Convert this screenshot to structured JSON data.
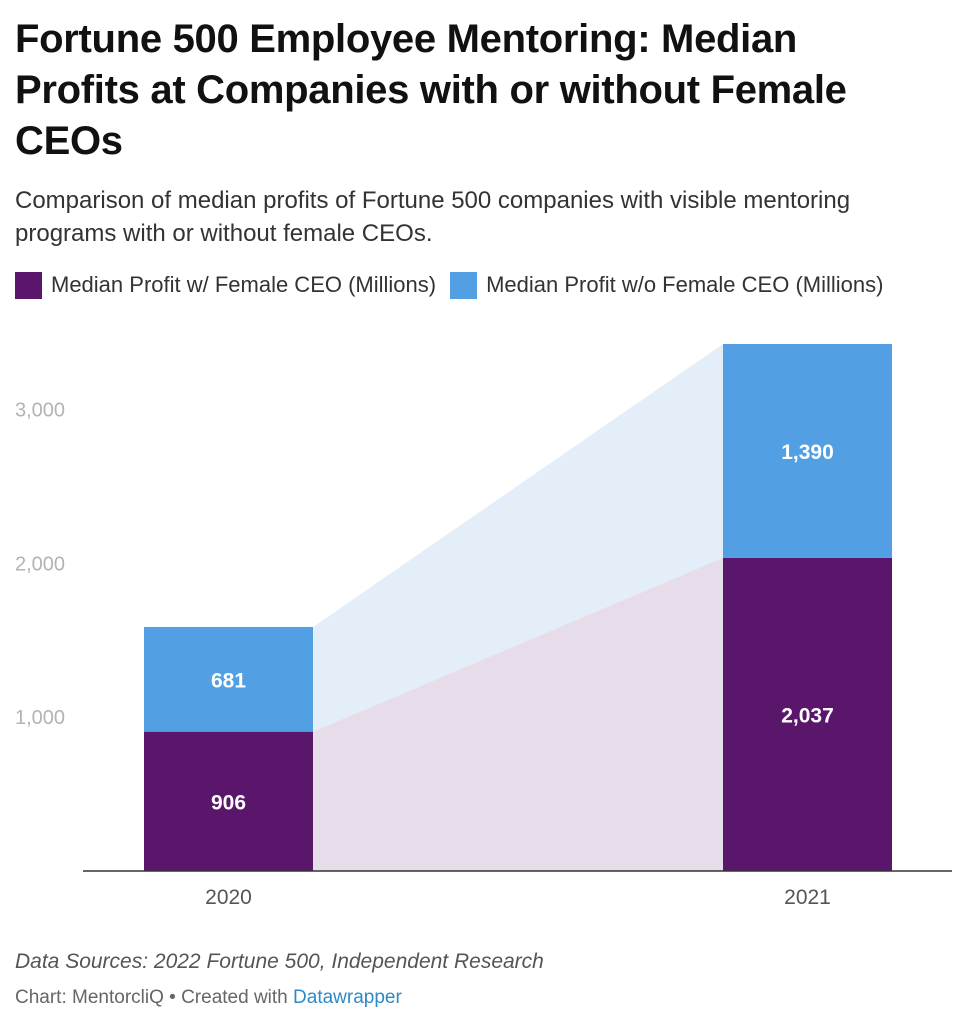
{
  "header": {
    "title": "Fortune 500 Employee Mentoring: Median Profits at Companies with or without Female CEOs",
    "subtitle": "Comparison of median profits of Fortune 500 companies with visible mentoring programs with or without female CEOs."
  },
  "legend": {
    "items": [
      {
        "label": "Median Profit w/ Female CEO (Millions)",
        "color": "#5a166b"
      },
      {
        "label": "Median Profit w/o Female CEO (Millions)",
        "color": "#52a0e3"
      }
    ]
  },
  "chart_data": {
    "type": "bar",
    "stacked": true,
    "categories": [
      "2020",
      "2021"
    ],
    "series": [
      {
        "name": "Median Profit w/ Female CEO (Millions)",
        "values": [
          906,
          2037
        ],
        "labels": [
          "906",
          "2,037"
        ],
        "color": "#5a166b",
        "band_color": "#e7dce9"
      },
      {
        "name": "Median Profit w/o Female CEO (Millions)",
        "values": [
          681,
          1390
        ],
        "labels": [
          "681",
          "1,390"
        ],
        "color": "#52a0e3",
        "band_color": "#e3eef9"
      }
    ],
    "ylim": [
      0,
      3427
    ],
    "yticks": [
      {
        "value": 1000,
        "label": "1,000"
      },
      {
        "value": 2000,
        "label": "2,000"
      },
      {
        "value": 3000,
        "label": "3,000"
      }
    ],
    "grid": false,
    "xlabel": "",
    "ylabel": ""
  },
  "footer": {
    "notes": "Data Sources: 2022 Fortune 500, Independent Research",
    "byline_prefix": "Chart: MentorcliQ • Created with ",
    "byline_link": "Datawrapper"
  }
}
